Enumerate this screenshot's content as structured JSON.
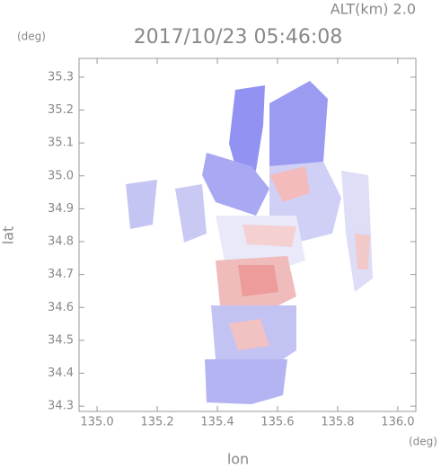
{
  "chart_data": {
    "type": "heatmap",
    "title": "2017/10/23 05:46:08",
    "subtitle": "ALT(km) 2.0",
    "x_label": "lon",
    "y_label": "lat",
    "x_unit": "(deg)",
    "y_unit": "(deg)",
    "xlim": [
      134.94,
      136.06
    ],
    "ylim": [
      34.284,
      35.357
    ],
    "xticks": [
      {
        "value": 135.0,
        "label": "135.0"
      },
      {
        "value": 135.2,
        "label": "135.2"
      },
      {
        "value": 135.4,
        "label": "135.4"
      },
      {
        "value": 135.6,
        "label": "135.6"
      },
      {
        "value": 135.8,
        "label": "135.8"
      },
      {
        "value": 136.0,
        "label": "136.0"
      }
    ],
    "yticks": [
      {
        "value": 34.3,
        "label": "34.3"
      },
      {
        "value": 34.4,
        "label": "34.4"
      },
      {
        "value": 34.5,
        "label": "34.5"
      },
      {
        "value": 34.6,
        "label": "34.6"
      },
      {
        "value": 34.7,
        "label": "34.7"
      },
      {
        "value": 34.8,
        "label": "34.8"
      },
      {
        "value": 34.9,
        "label": "34.9"
      },
      {
        "value": 35.0,
        "label": "35.0"
      },
      {
        "value": 35.1,
        "label": "35.1"
      },
      {
        "value": 35.2,
        "label": "35.2"
      },
      {
        "value": 35.3,
        "label": "35.3"
      }
    ]
  }
}
